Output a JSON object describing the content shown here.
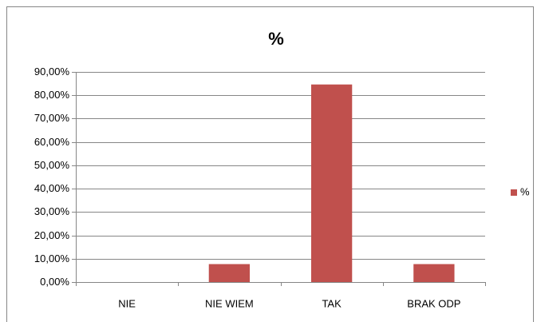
{
  "chart_data": {
    "type": "bar",
    "title": "%",
    "categories": [
      "NIE",
      "NIE WIEM",
      "TAK",
      "BRAK ODP"
    ],
    "series": [
      {
        "name": "%",
        "color": "#c0504d",
        "values": [
          0,
          7.69,
          84.62,
          7.69
        ]
      }
    ],
    "ylim": [
      0,
      90
    ],
    "yticks": [
      {
        "value": 0,
        "label": "0,00%"
      },
      {
        "value": 10,
        "label": "10,00%"
      },
      {
        "value": 20,
        "label": "20,00%"
      },
      {
        "value": 30,
        "label": "30,00%"
      },
      {
        "value": 40,
        "label": "40,00%"
      },
      {
        "value": 50,
        "label": "50,00%"
      },
      {
        "value": 60,
        "label": "60,00%"
      },
      {
        "value": 70,
        "label": "70,00%"
      },
      {
        "value": 80,
        "label": "80,00%"
      },
      {
        "value": 90,
        "label": "90,00%"
      }
    ],
    "grid": true,
    "legend": "right"
  }
}
